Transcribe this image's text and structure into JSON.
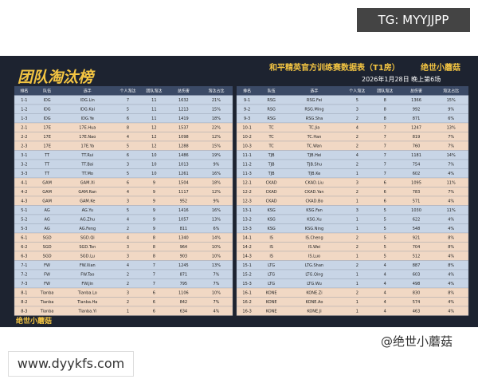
{
  "header": {
    "title": "团队淘汰榜",
    "subtitle": "和平精英官方训练赛数据表（T1房）",
    "brand": "绝世小蘑菇",
    "date": "2026年1月28日 晚上第6场"
  },
  "watermarks": {
    "top": "TG: MYYJJPP",
    "bottom": "www.dyykfs.com",
    "weibo": "@绝世小蘑菇"
  },
  "footer": {
    "brand": "绝世小蘑菇"
  },
  "tables": {
    "columns": [
      "排名",
      "队伍",
      "选手",
      "个人淘汰",
      "团队淘汰",
      "总伤害",
      "淘汰占比"
    ],
    "left": {
      "rows": [
        [
          "1-1",
          "IDG",
          "IDG.Lin",
          "7",
          "11",
          "1632",
          "21%"
        ],
        [
          "1-2",
          "IDG",
          "IDG.Kai",
          "5",
          "11",
          "1213",
          "15%"
        ],
        [
          "1-3",
          "IDG",
          "IDG.Ye",
          "6",
          "11",
          "1419",
          "18%"
        ],
        [
          "2-1",
          "17E",
          "17E.Hua",
          "8",
          "12",
          "1537",
          "22%"
        ],
        [
          "2-2",
          "17E",
          "17E.Nao",
          "4",
          "12",
          "1098",
          "12%"
        ],
        [
          "2-3",
          "17E",
          "17E.Ya",
          "5",
          "12",
          "1288",
          "15%"
        ],
        [
          "3-1",
          "TT",
          "TT.Rui",
          "6",
          "10",
          "1486",
          "19%"
        ],
        [
          "3-2",
          "TT",
          "TT.Bai",
          "3",
          "10",
          "1013",
          "9%"
        ],
        [
          "3-3",
          "TT",
          "TT.Mo",
          "5",
          "10",
          "1261",
          "16%"
        ],
        [
          "4-1",
          "GAM",
          "GAM.Xi",
          "6",
          "9",
          "1504",
          "18%"
        ],
        [
          "4-2",
          "GAM",
          "GAM.Ran",
          "4",
          "9",
          "1117",
          "12%"
        ],
        [
          "4-3",
          "GAM",
          "GAM.Ke",
          "3",
          "9",
          "952",
          "9%"
        ],
        [
          "5-1",
          "AG",
          "AG.Yu",
          "5",
          "9",
          "1416",
          "16%"
        ],
        [
          "5-2",
          "AG",
          "AG.Zhu",
          "4",
          "9",
          "1057",
          "13%"
        ],
        [
          "5-3",
          "AG",
          "AG.Feng",
          "2",
          "9",
          "811",
          "6%"
        ],
        [
          "6-1",
          "SGD",
          "SGD.Qi",
          "4",
          "8",
          "1340",
          "14%"
        ],
        [
          "6-2",
          "SGD",
          "SGD.Ton",
          "3",
          "8",
          "964",
          "10%"
        ],
        [
          "6-3",
          "SGD",
          "SGD.Lu",
          "3",
          "8",
          "903",
          "10%"
        ],
        [
          "7-1",
          "FW",
          "FW.Xian",
          "4",
          "7",
          "1245",
          "13%"
        ],
        [
          "7-2",
          "FW",
          "FW.Tao",
          "2",
          "7",
          "871",
          "7%"
        ],
        [
          "7-3",
          "FW",
          "FW.Jin",
          "2",
          "7",
          "795",
          "7%"
        ],
        [
          "8-1",
          "Tianba",
          "Tianba.Lo",
          "3",
          "6",
          "1106",
          "10%"
        ],
        [
          "8-2",
          "Tianba",
          "Tianba.Ha",
          "2",
          "6",
          "842",
          "7%"
        ],
        [
          "8-3",
          "Tianba",
          "Tianba.Yi",
          "1",
          "6",
          "634",
          "4%"
        ]
      ]
    },
    "right": {
      "rows": [
        [
          "9-1",
          "RSG",
          "RSG.Fei",
          "5",
          "8",
          "1366",
          "15%"
        ],
        [
          "9-2",
          "RSG",
          "RSG.Ming",
          "3",
          "8",
          "992",
          "9%"
        ],
        [
          "9-3",
          "RSG",
          "RSG.Sha",
          "2",
          "8",
          "871",
          "6%"
        ],
        [
          "10-1",
          "TC",
          "TC.Jia",
          "4",
          "7",
          "1247",
          "13%"
        ],
        [
          "10-2",
          "TC",
          "TC.Han",
          "2",
          "7",
          "819",
          "7%"
        ],
        [
          "10-3",
          "TC",
          "TC.Wan",
          "2",
          "7",
          "760",
          "7%"
        ],
        [
          "11-1",
          "TJB",
          "TJB.Hei",
          "4",
          "7",
          "1181",
          "14%"
        ],
        [
          "11-2",
          "TJB",
          "TJB.Shu",
          "2",
          "7",
          "754",
          "7%"
        ],
        [
          "11-3",
          "TJB",
          "TJB.Ke",
          "1",
          "7",
          "602",
          "4%"
        ],
        [
          "12-1",
          "CKAD",
          "CKAD.Liu",
          "3",
          "6",
          "1095",
          "11%"
        ],
        [
          "12-2",
          "CKAD",
          "CKAD.Yan",
          "2",
          "6",
          "783",
          "7%"
        ],
        [
          "12-3",
          "CKAD",
          "CKAD.Bo",
          "1",
          "6",
          "571",
          "4%"
        ],
        [
          "13-1",
          "KSG",
          "KSG.Fan",
          "3",
          "5",
          "1030",
          "11%"
        ],
        [
          "13-2",
          "KSG",
          "KSG.Xu",
          "1",
          "5",
          "622",
          "4%"
        ],
        [
          "13-3",
          "KSG",
          "KSG.Ning",
          "1",
          "5",
          "548",
          "4%"
        ],
        [
          "14-1",
          "IS",
          "IS.Cheng",
          "2",
          "5",
          "921",
          "8%"
        ],
        [
          "14-2",
          "IS",
          "IS.Wei",
          "2",
          "5",
          "704",
          "8%"
        ],
        [
          "14-3",
          "IS",
          "IS.Luo",
          "1",
          "5",
          "512",
          "4%"
        ],
        [
          "15-1",
          "LTG",
          "LTG.Shan",
          "2",
          "4",
          "887",
          "8%"
        ],
        [
          "15-2",
          "LTG",
          "LTG.Qing",
          "1",
          "4",
          "603",
          "4%"
        ],
        [
          "15-3",
          "LTG",
          "LTG.Wu",
          "1",
          "4",
          "498",
          "4%"
        ],
        [
          "16-1",
          "KONE",
          "KONE.Zi",
          "2",
          "4",
          "830",
          "8%"
        ],
        [
          "16-2",
          "KONE",
          "KONE.Ao",
          "1",
          "4",
          "574",
          "4%"
        ],
        [
          "16-3",
          "KONE",
          "KONE.Ji",
          "1",
          "4",
          "463",
          "4%"
        ]
      ]
    }
  }
}
